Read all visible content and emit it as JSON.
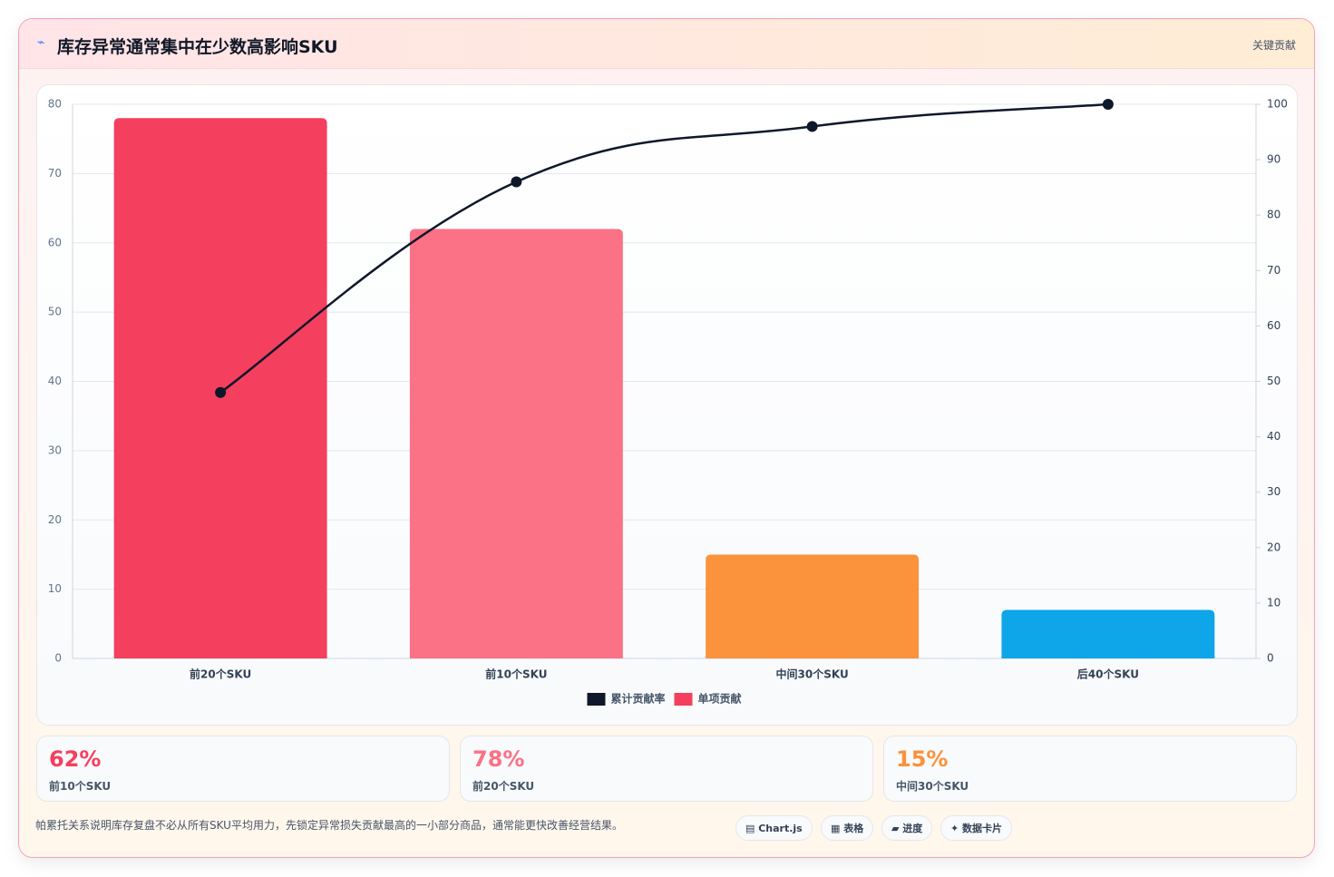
{
  "header": {
    "icon": "⌁",
    "title": "库存异常通常集中在少数高影响SKU",
    "tag": "关键贡献"
  },
  "chart_data": {
    "type": "pareto",
    "categories": [
      "前20个SKU",
      "前10个SKU",
      "中间30个SKU",
      "后40个SKU"
    ],
    "series": [
      {
        "name": "累计贡献率",
        "type": "line",
        "color": "#0f172a",
        "axis": "y2",
        "values": [
          48,
          86,
          96,
          100
        ]
      },
      {
        "name": "单项贡献",
        "type": "bar",
        "color": "#f43f5e",
        "colors": [
          "#f43f5e",
          "#fb7185",
          "#fb923c",
          "#0ea5e9"
        ],
        "values": [
          78,
          62,
          15,
          7
        ]
      }
    ],
    "ylim": [
      0,
      80
    ],
    "yticks": [
      0,
      10,
      20,
      30,
      40,
      50,
      60,
      70,
      80
    ],
    "y2lim": [
      0,
      100
    ],
    "y2ticks": [
      0,
      10,
      20,
      30,
      40,
      50,
      60,
      70,
      80,
      90,
      100
    ],
    "grid": true,
    "legend": "bottom"
  },
  "stats": [
    {
      "value": "62%",
      "label": "前10个SKU",
      "color": "#f43f5e"
    },
    {
      "value": "78%",
      "label": "前20个SKU",
      "color": "#fb7185"
    },
    {
      "value": "15%",
      "label": "中间30个SKU",
      "color": "#fb923c"
    }
  ],
  "footer": {
    "text": "帕累托关系说明库存复盘不必从所有SKU平均用力，先锁定异常损失贡献最高的一小部分商品，通常能更快改善经营结果。",
    "chips": [
      "▤ Chart.js",
      "▦ 表格",
      "▰ 进度",
      "✦ 数据卡片"
    ]
  }
}
